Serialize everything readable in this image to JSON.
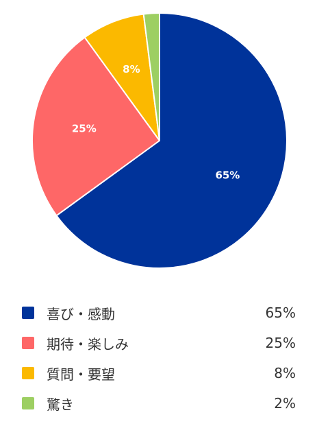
{
  "chart_data": {
    "type": "pie",
    "slices": [
      {
        "label": "喜び・感動",
        "value": 65,
        "display": "65%",
        "color": "#00339a"
      },
      {
        "label": "期待・楽しみ",
        "value": 25,
        "display": "25%",
        "color": "#fe6767"
      },
      {
        "label": "質問・要望",
        "value": 8,
        "display": "8%",
        "color": "#fbb900"
      },
      {
        "label": "驚き",
        "value": 2,
        "display": "2%",
        "color": "#9dcf62"
      }
    ],
    "start_angle": "12 o'clock",
    "direction": "clockwise",
    "legend_position": "bottom"
  }
}
